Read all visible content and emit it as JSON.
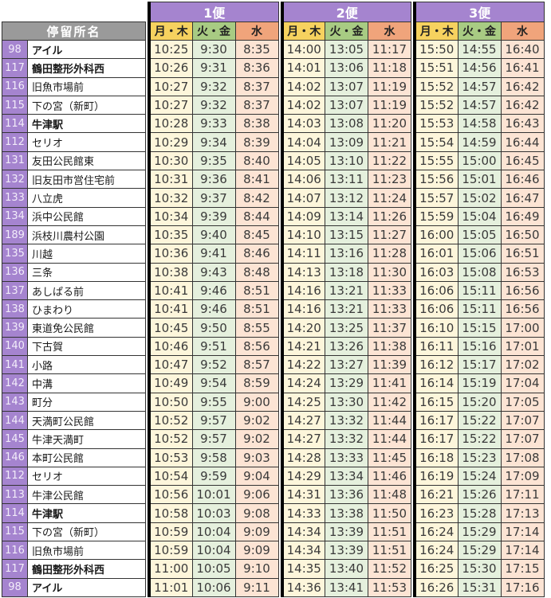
{
  "table": {
    "stops_header": "停留所名",
    "sections": [
      {
        "label": "1便"
      },
      {
        "label": "2便"
      },
      {
        "label": "3便"
      }
    ],
    "day_headers": [
      {
        "label": "月・木",
        "header_color": "#f6d25f",
        "cell_color": "#fdf6db"
      },
      {
        "label": "火・金",
        "header_color": "#a8cb83",
        "cell_color": "#e5f0dd"
      },
      {
        "label": "水",
        "header_color": "#f0a47b",
        "cell_color": "#fce4d4"
      }
    ],
    "colors": {
      "section_header_purple": "#a584cf",
      "stop_number_purple": "#a584cf",
      "stops_header_gray": "#9a9a9a",
      "border_dark": "#333333",
      "section_divider_black": "#000000"
    },
    "stops": [
      {
        "no": "98",
        "name": "アイル",
        "bold": true,
        "times": [
          "10:25",
          "9:30",
          "8:35",
          "14:00",
          "13:05",
          "11:17",
          "15:50",
          "14:55",
          "16:40"
        ]
      },
      {
        "no": "117",
        "name": "鶴田整形外科西",
        "bold": true,
        "times": [
          "10:26",
          "9:31",
          "8:36",
          "14:01",
          "13:06",
          "11:18",
          "15:51",
          "14:56",
          "16:41"
        ]
      },
      {
        "no": "116",
        "name": "旧魚市場前",
        "bold": false,
        "times": [
          "10:27",
          "9:32",
          "8:37",
          "14:02",
          "13:07",
          "11:19",
          "15:52",
          "14:57",
          "16:42"
        ]
      },
      {
        "no": "115",
        "name": "下の宮（新町）",
        "bold": false,
        "times": [
          "10:27",
          "9:32",
          "8:37",
          "14:02",
          "13:07",
          "11:19",
          "15:52",
          "14:57",
          "16:42"
        ]
      },
      {
        "no": "114",
        "name": "牛津駅",
        "bold": true,
        "times": [
          "10:28",
          "9:33",
          "8:38",
          "14:03",
          "13:08",
          "11:20",
          "15:53",
          "14:58",
          "16:43"
        ]
      },
      {
        "no": "112",
        "name": "セリオ",
        "bold": false,
        "times": [
          "10:29",
          "9:34",
          "8:39",
          "14:04",
          "13:09",
          "11:21",
          "15:54",
          "14:59",
          "16:44"
        ]
      },
      {
        "no": "131",
        "name": "友田公民館東",
        "bold": false,
        "times": [
          "10:30",
          "9:35",
          "8:40",
          "14:05",
          "13:10",
          "11:22",
          "15:55",
          "15:00",
          "16:45"
        ]
      },
      {
        "no": "132",
        "name": "旧友田市営住宅前",
        "bold": false,
        "times": [
          "10:31",
          "9:36",
          "8:41",
          "14:06",
          "13:11",
          "11:23",
          "15:56",
          "15:01",
          "16:46"
        ]
      },
      {
        "no": "133",
        "name": "八立虎",
        "bold": false,
        "times": [
          "10:32",
          "9:37",
          "8:42",
          "14:07",
          "13:12",
          "11:24",
          "15:57",
          "15:02",
          "16:47"
        ]
      },
      {
        "no": "134",
        "name": "浜中公民館",
        "bold": false,
        "times": [
          "10:34",
          "9:39",
          "8:44",
          "14:09",
          "13:14",
          "11:26",
          "15:59",
          "15:04",
          "16:49"
        ]
      },
      {
        "no": "189",
        "name": "浜枝川農村公園",
        "bold": false,
        "times": [
          "10:35",
          "9:40",
          "8:45",
          "14:10",
          "13:15",
          "11:27",
          "16:00",
          "15:05",
          "16:50"
        ]
      },
      {
        "no": "135",
        "name": "川越",
        "bold": false,
        "times": [
          "10:36",
          "9:41",
          "8:46",
          "14:11",
          "13:16",
          "11:28",
          "16:01",
          "15:06",
          "16:51"
        ]
      },
      {
        "no": "136",
        "name": "三条",
        "bold": false,
        "times": [
          "10:38",
          "9:43",
          "8:48",
          "14:13",
          "13:18",
          "11:30",
          "16:03",
          "15:08",
          "16:53"
        ]
      },
      {
        "no": "137",
        "name": "あしぱる前",
        "bold": false,
        "times": [
          "10:41",
          "9:46",
          "8:51",
          "14:16",
          "13:21",
          "11:33",
          "16:06",
          "15:11",
          "16:56"
        ]
      },
      {
        "no": "138",
        "name": "ひまわり",
        "bold": false,
        "times": [
          "10:41",
          "9:46",
          "8:51",
          "14:16",
          "13:21",
          "11:33",
          "16:06",
          "15:11",
          "16:56"
        ]
      },
      {
        "no": "139",
        "name": "東道免公民館",
        "bold": false,
        "times": [
          "10:45",
          "9:50",
          "8:55",
          "14:20",
          "13:25",
          "11:37",
          "16:10",
          "15:15",
          "17:00"
        ]
      },
      {
        "no": "140",
        "name": "下古賀",
        "bold": false,
        "times": [
          "10:46",
          "9:51",
          "8:56",
          "14:21",
          "13:26",
          "11:38",
          "16:11",
          "15:16",
          "17:01"
        ]
      },
      {
        "no": "141",
        "name": "小路",
        "bold": false,
        "times": [
          "10:47",
          "9:52",
          "8:57",
          "14:22",
          "13:27",
          "11:39",
          "16:12",
          "15:17",
          "17:02"
        ]
      },
      {
        "no": "142",
        "name": "中溝",
        "bold": false,
        "times": [
          "10:49",
          "9:54",
          "8:59",
          "14:24",
          "13:29",
          "11:41",
          "16:14",
          "15:19",
          "17:04"
        ]
      },
      {
        "no": "143",
        "name": "町分",
        "bold": false,
        "times": [
          "10:50",
          "9:55",
          "9:00",
          "14:25",
          "13:30",
          "11:42",
          "16:15",
          "15:20",
          "17:05"
        ]
      },
      {
        "no": "144",
        "name": "天満町公民館",
        "bold": false,
        "times": [
          "10:52",
          "9:57",
          "9:02",
          "14:27",
          "13:32",
          "11:44",
          "16:17",
          "15:22",
          "17:07"
        ]
      },
      {
        "no": "145",
        "name": "牛津天満町",
        "bold": false,
        "times": [
          "10:52",
          "9:57",
          "9:02",
          "14:27",
          "13:32",
          "11:44",
          "16:17",
          "15:22",
          "17:07"
        ]
      },
      {
        "no": "146",
        "name": "本町公民館",
        "bold": false,
        "times": [
          "10:53",
          "9:58",
          "9:03",
          "14:28",
          "13:33",
          "11:45",
          "16:18",
          "15:23",
          "17:08"
        ]
      },
      {
        "no": "112",
        "name": "セリオ",
        "bold": false,
        "times": [
          "10:54",
          "9:59",
          "9:04",
          "14:29",
          "13:34",
          "11:46",
          "16:19",
          "15:24",
          "17:09"
        ]
      },
      {
        "no": "113",
        "name": "牛津公民館",
        "bold": false,
        "times": [
          "10:56",
          "10:01",
          "9:06",
          "14:31",
          "13:36",
          "11:48",
          "16:21",
          "15:26",
          "17:11"
        ]
      },
      {
        "no": "114",
        "name": "牛津駅",
        "bold": true,
        "times": [
          "10:58",
          "10:03",
          "9:08",
          "14:33",
          "13:38",
          "11:50",
          "16:23",
          "15:28",
          "17:13"
        ]
      },
      {
        "no": "115",
        "name": "下の宮（新町）",
        "bold": false,
        "times": [
          "10:59",
          "10:04",
          "9:09",
          "14:34",
          "13:39",
          "11:51",
          "16:24",
          "15:29",
          "17:14"
        ]
      },
      {
        "no": "116",
        "name": "旧魚市場前",
        "bold": false,
        "times": [
          "10:59",
          "10:04",
          "9:09",
          "14:34",
          "13:39",
          "11:51",
          "16:24",
          "15:29",
          "17:14"
        ]
      },
      {
        "no": "117",
        "name": "鶴田整形外科西",
        "bold": true,
        "times": [
          "11:00",
          "10:05",
          "9:10",
          "14:35",
          "13:40",
          "11:52",
          "16:25",
          "15:30",
          "17:15"
        ]
      },
      {
        "no": "98",
        "name": "アイル",
        "bold": true,
        "times": [
          "11:01",
          "10:06",
          "9:11",
          "14:36",
          "13:41",
          "11:53",
          "16:26",
          "15:31",
          "17:16"
        ]
      }
    ]
  }
}
